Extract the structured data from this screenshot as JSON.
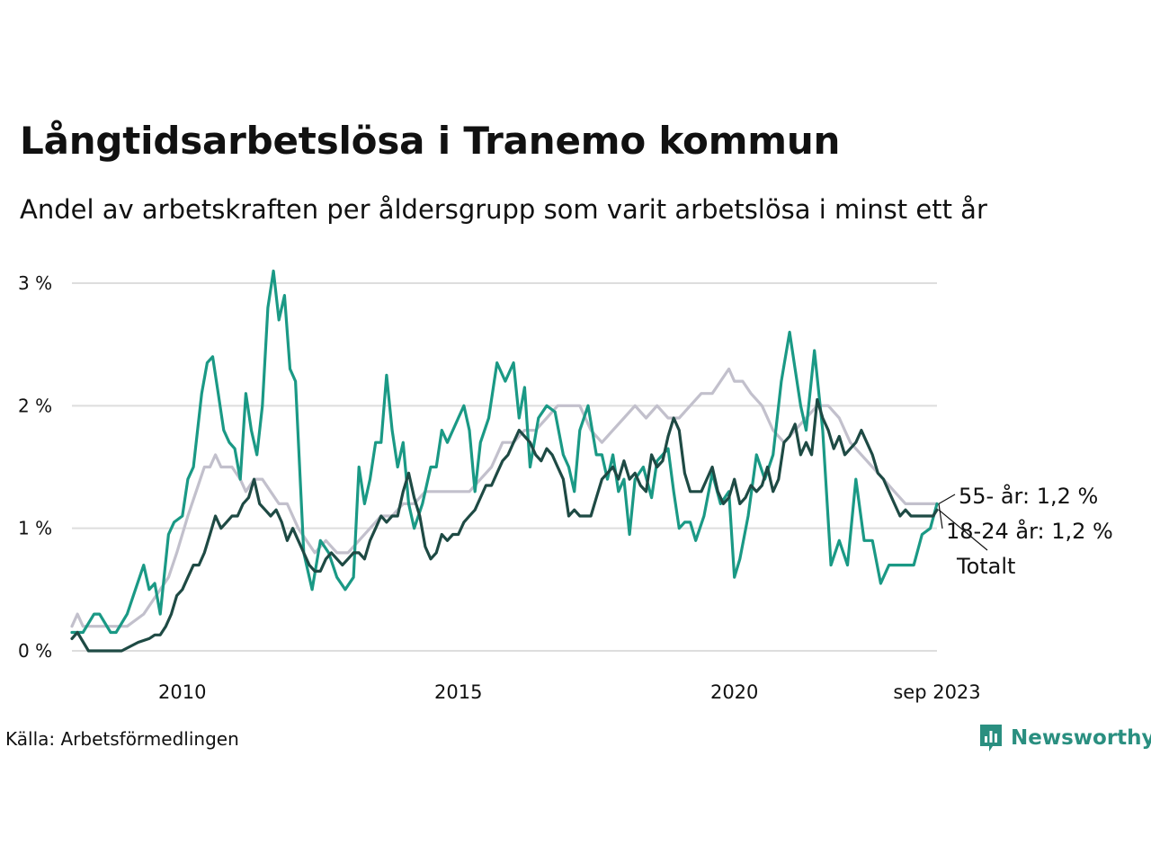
{
  "header": {
    "title": "Långtidsarbetslösa i Tranemo kommun",
    "subtitle": "Andel av arbetskraften per åldersgrupp som varit arbetslösa i minst ett år"
  },
  "footer": {
    "source": "Källa: Arbetsförmedlingen",
    "brand": "Newsworthy"
  },
  "colors": {
    "youth": "#1a9985",
    "senior": "#c2c0cc",
    "total": "#1e4a44",
    "grid": "#dddddd"
  },
  "chart_data": {
    "type": "line",
    "title": "Långtidsarbetslösa i Tranemo kommun",
    "xlabel": "",
    "ylabel": "",
    "x_unit": "decimal year",
    "xlim": [
      2008.0,
      2023.75
    ],
    "ylim": [
      0,
      3.15
    ],
    "y_ticks": [
      {
        "value": 0,
        "label": "0 %"
      },
      {
        "value": 1,
        "label": "1 %"
      },
      {
        "value": 2,
        "label": "2 %"
      },
      {
        "value": 3,
        "label": "3 %"
      }
    ],
    "x_ticks": [
      {
        "value": 2010,
        "label": "2010"
      },
      {
        "value": 2015,
        "label": "2015"
      },
      {
        "value": 2020,
        "label": "2020"
      },
      {
        "value": 2023.67,
        "label": "sep 2023"
      }
    ],
    "end_labels": [
      {
        "series": "55- år",
        "text": "55- år: 1,2 %"
      },
      {
        "series": "18-24 år",
        "text": "18-24 år: 1,2 %"
      },
      {
        "series": "Totalt",
        "text": "Totalt"
      }
    ],
    "series": [
      {
        "name": "55- år",
        "color": "#c2c0cc",
        "x": [
          2008.0,
          2008.1,
          2008.2,
          2008.5,
          2008.7,
          2009.0,
          2009.3,
          2009.45,
          2009.6,
          2009.75,
          2009.9,
          2010.1,
          2010.25,
          2010.4,
          2010.5,
          2010.6,
          2010.7,
          2010.8,
          2010.9,
          2011.05,
          2011.15,
          2011.3,
          2011.45,
          2011.6,
          2011.75,
          2011.9,
          2012.1,
          2012.25,
          2012.4,
          2012.6,
          2012.8,
          2013.0,
          2013.2,
          2013.4,
          2013.6,
          2013.8,
          2014.0,
          2014.2,
          2014.4,
          2014.6,
          2014.8,
          2015.0,
          2015.2,
          2015.4,
          2015.6,
          2015.8,
          2016.0,
          2016.2,
          2016.4,
          2016.6,
          2016.8,
          2017.0,
          2017.2,
          2017.4,
          2017.6,
          2017.8,
          2018.0,
          2018.2,
          2018.4,
          2018.6,
          2018.8,
          2019.0,
          2019.2,
          2019.4,
          2019.6,
          2019.75,
          2019.9,
          2020.0,
          2020.15,
          2020.3,
          2020.5,
          2020.7,
          2020.9,
          2021.1,
          2021.3,
          2021.5,
          2021.7,
          2021.9,
          2022.1,
          2022.3,
          2022.5,
          2022.7,
          2022.9,
          2023.1,
          2023.3,
          2023.5,
          2023.67
        ],
        "y": [
          0.2,
          0.3,
          0.2,
          0.2,
          0.2,
          0.2,
          0.3,
          0.4,
          0.5,
          0.6,
          0.8,
          1.1,
          1.3,
          1.5,
          1.5,
          1.6,
          1.5,
          1.5,
          1.5,
          1.4,
          1.3,
          1.4,
          1.4,
          1.3,
          1.2,
          1.2,
          1.0,
          0.9,
          0.8,
          0.9,
          0.8,
          0.8,
          0.9,
          1.0,
          1.1,
          1.1,
          1.2,
          1.2,
          1.3,
          1.3,
          1.3,
          1.3,
          1.3,
          1.4,
          1.5,
          1.7,
          1.7,
          1.8,
          1.8,
          1.9,
          2.0,
          2.0,
          2.0,
          1.8,
          1.7,
          1.8,
          1.9,
          2.0,
          1.9,
          2.0,
          1.9,
          1.9,
          2.0,
          2.1,
          2.1,
          2.2,
          2.3,
          2.2,
          2.2,
          2.1,
          2.0,
          1.8,
          1.7,
          1.8,
          1.9,
          2.0,
          2.0,
          1.9,
          1.7,
          1.6,
          1.5,
          1.4,
          1.3,
          1.2,
          1.2,
          1.2,
          1.2
        ]
      },
      {
        "name": "18-24 år",
        "color": "#1a9985",
        "x": [
          2008.0,
          2008.2,
          2008.4,
          2008.5,
          2008.7,
          2008.8,
          2009.0,
          2009.15,
          2009.3,
          2009.4,
          2009.5,
          2009.6,
          2009.75,
          2009.85,
          2010.0,
          2010.1,
          2010.2,
          2010.35,
          2010.45,
          2010.55,
          2010.65,
          2010.75,
          2010.85,
          2010.95,
          2011.05,
          2011.15,
          2011.25,
          2011.35,
          2011.45,
          2011.55,
          2011.65,
          2011.75,
          2011.85,
          2011.95,
          2012.05,
          2012.2,
          2012.35,
          2012.5,
          2012.65,
          2012.8,
          2012.95,
          2013.1,
          2013.2,
          2013.3,
          2013.4,
          2013.5,
          2013.6,
          2013.7,
          2013.8,
          2013.9,
          2014.0,
          2014.1,
          2014.2,
          2014.35,
          2014.5,
          2014.6,
          2014.7,
          2014.8,
          2014.9,
          2015.0,
          2015.1,
          2015.2,
          2015.3,
          2015.4,
          2015.55,
          2015.7,
          2015.85,
          2016.0,
          2016.1,
          2016.2,
          2016.3,
          2016.45,
          2016.6,
          2016.75,
          2016.9,
          2017.0,
          2017.1,
          2017.2,
          2017.35,
          2017.5,
          2017.6,
          2017.7,
          2017.8,
          2017.9,
          2018.0,
          2018.1,
          2018.2,
          2018.35,
          2018.5,
          2018.6,
          2018.7,
          2018.8,
          2018.9,
          2019.0,
          2019.1,
          2019.2,
          2019.3,
          2019.45,
          2019.6,
          2019.75,
          2019.9,
          2020.0,
          2020.1,
          2020.25,
          2020.4,
          2020.55,
          2020.7,
          2020.85,
          2021.0,
          2021.1,
          2021.2,
          2021.3,
          2021.45,
          2021.6,
          2021.75,
          2021.9,
          2022.05,
          2022.2,
          2022.35,
          2022.5,
          2022.65,
          2022.8,
          2022.95,
          2023.1,
          2023.25,
          2023.4,
          2023.55,
          2023.67
        ],
        "y": [
          0.15,
          0.15,
          0.3,
          0.3,
          0.15,
          0.15,
          0.3,
          0.5,
          0.7,
          0.5,
          0.55,
          0.3,
          0.95,
          1.05,
          1.1,
          1.4,
          1.5,
          2.1,
          2.35,
          2.4,
          2.1,
          1.8,
          1.7,
          1.65,
          1.4,
          2.1,
          1.8,
          1.6,
          2.0,
          2.8,
          3.1,
          2.7,
          2.9,
          2.3,
          2.2,
          0.8,
          0.5,
          0.9,
          0.8,
          0.6,
          0.5,
          0.6,
          1.5,
          1.2,
          1.4,
          1.7,
          1.7,
          2.25,
          1.8,
          1.5,
          1.7,
          1.2,
          1.0,
          1.2,
          1.5,
          1.5,
          1.8,
          1.7,
          1.8,
          1.9,
          2.0,
          1.8,
          1.3,
          1.7,
          1.9,
          2.35,
          2.2,
          2.35,
          1.9,
          2.15,
          1.5,
          1.9,
          2.0,
          1.95,
          1.6,
          1.5,
          1.3,
          1.8,
          2.0,
          1.6,
          1.6,
          1.4,
          1.6,
          1.3,
          1.4,
          0.95,
          1.4,
          1.5,
          1.25,
          1.55,
          1.6,
          1.65,
          1.3,
          1.0,
          1.05,
          1.05,
          0.9,
          1.1,
          1.45,
          1.2,
          1.3,
          0.6,
          0.75,
          1.1,
          1.6,
          1.4,
          1.6,
          2.2,
          2.6,
          2.3,
          2.0,
          1.8,
          2.45,
          1.8,
          0.7,
          0.9,
          0.7,
          1.4,
          0.9,
          0.9,
          0.55,
          0.7,
          0.7,
          0.7,
          0.7,
          0.95,
          1.0,
          1.2
        ]
      },
      {
        "name": "Totalt",
        "color": "#1e4a44",
        "x": [
          2008.0,
          2008.1,
          2008.3,
          2008.6,
          2008.9,
          2009.2,
          2009.4,
          2009.5,
          2009.6,
          2009.7,
          2009.8,
          2009.9,
          2010.0,
          2010.1,
          2010.2,
          2010.3,
          2010.4,
          2010.5,
          2010.6,
          2010.7,
          2010.8,
          2010.9,
          2011.0,
          2011.1,
          2011.2,
          2011.3,
          2011.4,
          2011.5,
          2011.6,
          2011.7,
          2011.8,
          2011.9,
          2012.0,
          2012.1,
          2012.2,
          2012.3,
          2012.4,
          2012.5,
          2012.6,
          2012.7,
          2012.8,
          2012.9,
          2013.0,
          2013.1,
          2013.2,
          2013.3,
          2013.4,
          2013.5,
          2013.6,
          2013.7,
          2013.8,
          2013.9,
          2014.0,
          2014.1,
          2014.2,
          2014.3,
          2014.4,
          2014.5,
          2014.6,
          2014.7,
          2014.8,
          2014.9,
          2015.0,
          2015.1,
          2015.2,
          2015.3,
          2015.4,
          2015.5,
          2015.6,
          2015.7,
          2015.8,
          2015.9,
          2016.0,
          2016.1,
          2016.2,
          2016.3,
          2016.4,
          2016.5,
          2016.6,
          2016.7,
          2016.8,
          2016.9,
          2017.0,
          2017.1,
          2017.2,
          2017.3,
          2017.4,
          2017.5,
          2017.6,
          2017.7,
          2017.8,
          2017.9,
          2018.0,
          2018.1,
          2018.2,
          2018.3,
          2018.4,
          2018.5,
          2018.6,
          2018.7,
          2018.8,
          2018.9,
          2019.0,
          2019.1,
          2019.2,
          2019.3,
          2019.4,
          2019.5,
          2019.6,
          2019.7,
          2019.8,
          2019.9,
          2020.0,
          2020.1,
          2020.2,
          2020.3,
          2020.4,
          2020.5,
          2020.6,
          2020.7,
          2020.8,
          2020.9,
          2021.0,
          2021.1,
          2021.2,
          2021.3,
          2021.4,
          2021.5,
          2021.6,
          2021.7,
          2021.8,
          2021.9,
          2022.0,
          2022.1,
          2022.2,
          2022.3,
          2022.4,
          2022.5,
          2022.6,
          2022.7,
          2022.8,
          2022.9,
          2023.0,
          2023.1,
          2023.2,
          2023.3,
          2023.4,
          2023.5,
          2023.6,
          2023.67
        ],
        "y": [
          0.1,
          0.15,
          0.0,
          0.0,
          0.0,
          0.07,
          0.1,
          0.13,
          0.13,
          0.2,
          0.3,
          0.45,
          0.5,
          0.6,
          0.7,
          0.7,
          0.8,
          0.95,
          1.1,
          1.0,
          1.05,
          1.1,
          1.1,
          1.2,
          1.25,
          1.4,
          1.2,
          1.15,
          1.1,
          1.15,
          1.05,
          0.9,
          1.0,
          0.9,
          0.8,
          0.7,
          0.65,
          0.65,
          0.75,
          0.8,
          0.75,
          0.7,
          0.75,
          0.8,
          0.8,
          0.75,
          0.9,
          1.0,
          1.1,
          1.05,
          1.1,
          1.1,
          1.3,
          1.45,
          1.25,
          1.1,
          0.85,
          0.75,
          0.8,
          0.95,
          0.9,
          0.95,
          0.95,
          1.05,
          1.1,
          1.15,
          1.25,
          1.35,
          1.35,
          1.45,
          1.55,
          1.6,
          1.7,
          1.8,
          1.75,
          1.7,
          1.6,
          1.55,
          1.65,
          1.6,
          1.5,
          1.4,
          1.1,
          1.15,
          1.1,
          1.1,
          1.1,
          1.25,
          1.4,
          1.45,
          1.5,
          1.4,
          1.55,
          1.4,
          1.45,
          1.35,
          1.3,
          1.6,
          1.5,
          1.55,
          1.75,
          1.9,
          1.8,
          1.45,
          1.3,
          1.3,
          1.3,
          1.4,
          1.5,
          1.3,
          1.2,
          1.25,
          1.4,
          1.2,
          1.25,
          1.35,
          1.3,
          1.35,
          1.5,
          1.3,
          1.4,
          1.7,
          1.75,
          1.85,
          1.6,
          1.7,
          1.6,
          2.05,
          1.9,
          1.8,
          1.65,
          1.75,
          1.6,
          1.65,
          1.7,
          1.8,
          1.7,
          1.6,
          1.45,
          1.4,
          1.3,
          1.2,
          1.1,
          1.15,
          1.1,
          1.1,
          1.1,
          1.1,
          1.1,
          1.15
        ]
      }
    ]
  }
}
